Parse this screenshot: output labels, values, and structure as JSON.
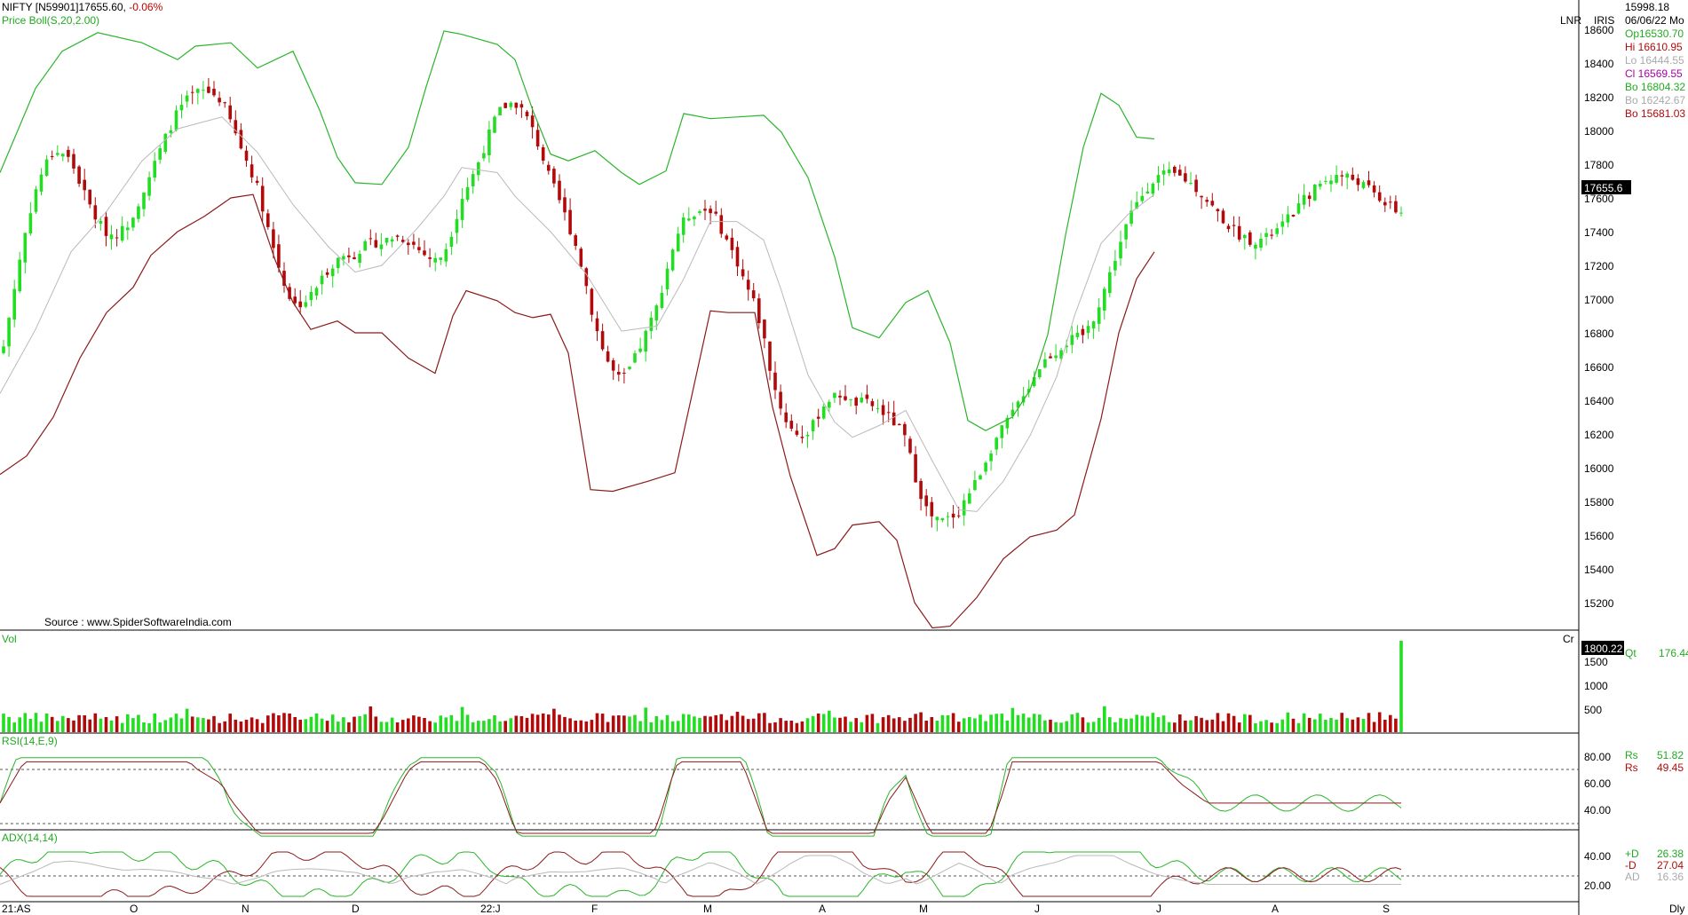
{
  "header": {
    "symbol": "NIFTY [N59901]",
    "last": "17655.60,",
    "change": "-0.06%",
    "indicator": "Price Boll(S,20,2.00)",
    "scale_labels": [
      "LNR",
      "IRIS"
    ]
  },
  "info": {
    "value": "15998.18",
    "date": "06/06/22 Mo",
    "open": "Op16530.70",
    "high": "Hi  16610.95",
    "low": "Lo  16444.55",
    "close": "Cl  16569.55",
    "boll_up": "Bo 16804.32",
    "boll_mid": "Bo 16242.67",
    "boll_low": "Bo 15681.03"
  },
  "source": "Source : www.SpiderSoftwareIndia.com",
  "price_axis": [
    "18600",
    "18400",
    "18200",
    "18000",
    "17800",
    "17600",
    "17400",
    "17200",
    "17000",
    "16800",
    "16600",
    "16400",
    "16200",
    "16000",
    "15800",
    "15600",
    "15400",
    "15200"
  ],
  "price_tag": "17655.6",
  "vol": {
    "label": "Vol",
    "unit": "Cr",
    "tag": "1800.22",
    "qt": "Qt",
    "qt_value": "176.44",
    "axis": [
      "1500",
      "1000",
      "500"
    ]
  },
  "rsi": {
    "label": "RSI(14,E,9)",
    "axis": [
      "80.00",
      "60.00",
      "40.00"
    ],
    "rs1_label": "Rs",
    "rs1_value": "51.82",
    "rs2_label": "Rs",
    "rs2_value": "49.45"
  },
  "adx": {
    "label": "ADX(14,14)",
    "axis": [
      "40.00",
      "20.00"
    ],
    "pd_label": "+D",
    "pd_value": "26.38",
    "md_label": "-D",
    "md_value": "27.04",
    "ad_label": "AD",
    "ad_value": "16.36"
  },
  "x_axis": [
    "21:AS",
    "O",
    "N",
    "D",
    "22:J",
    "F",
    "M",
    "A",
    "M",
    "J",
    "J",
    "A",
    "S"
  ],
  "x_axis_right": "Dly",
  "colors": {
    "up": "#22dd22",
    "down": "#b20a0a",
    "boll_upper": "#2ab52a",
    "boll_mid": "#b9b9b9",
    "boll_lower": "#8b1a1a",
    "rsi": "#2ab52a",
    "rsi_signal": "#8b1a1a",
    "adx_plus": "#2ab52a",
    "adx_minus": "#8b1a1a",
    "adx": "#b9b9b9",
    "tag_bg": "#000000"
  },
  "chart_data": {
    "type": "candlestick",
    "period": "daily",
    "y_range": [
      15050,
      18680
    ],
    "ohlc_count": 260,
    "upper_band": [
      [
        0,
        17750
      ],
      [
        20,
        18000
      ],
      [
        40,
        18250
      ],
      [
        70,
        18470
      ],
      [
        110,
        18580
      ],
      [
        160,
        18520
      ],
      [
        200,
        18420
      ],
      [
        220,
        18500
      ],
      [
        260,
        18520
      ],
      [
        290,
        18370
      ],
      [
        330,
        18470
      ],
      [
        360,
        18120
      ],
      [
        380,
        17840
      ],
      [
        400,
        17690
      ],
      [
        430,
        17680
      ],
      [
        460,
        17900
      ],
      [
        480,
        18260
      ],
      [
        500,
        18590
      ],
      [
        520,
        18570
      ],
      [
        560,
        18510
      ],
      [
        580,
        18420
      ],
      [
        600,
        18120
      ],
      [
        620,
        17860
      ],
      [
        640,
        17820
      ],
      [
        670,
        17880
      ],
      [
        700,
        17750
      ],
      [
        720,
        17680
      ],
      [
        750,
        17760
      ],
      [
        770,
        18100
      ],
      [
        800,
        18070
      ],
      [
        830,
        18080
      ],
      [
        860,
        18090
      ],
      [
        880,
        17990
      ],
      [
        910,
        17720
      ],
      [
        940,
        17250
      ],
      [
        960,
        16830
      ],
      [
        990,
        16770
      ],
      [
        1020,
        16980
      ],
      [
        1045,
        17050
      ],
      [
        1070,
        16740
      ],
      [
        1090,
        16280
      ],
      [
        1110,
        16220
      ],
      [
        1140,
        16300
      ],
      [
        1160,
        16460
      ],
      [
        1180,
        16790
      ],
      [
        1200,
        17380
      ],
      [
        1220,
        17900
      ],
      [
        1240,
        18220
      ],
      [
        1260,
        18150
      ],
      [
        1280,
        17960
      ],
      [
        1300,
        17950
      ]
    ],
    "middle_band": [
      [
        0,
        16440
      ],
      [
        40,
        16820
      ],
      [
        80,
        17280
      ],
      [
        120,
        17520
      ],
      [
        160,
        17820
      ],
      [
        200,
        18010
      ],
      [
        250,
        18080
      ],
      [
        290,
        17870
      ],
      [
        330,
        17560
      ],
      [
        370,
        17310
      ],
      [
        400,
        17160
      ],
      [
        430,
        17200
      ],
      [
        470,
        17420
      ],
      [
        500,
        17610
      ],
      [
        520,
        17780
      ],
      [
        560,
        17750
      ],
      [
        580,
        17610
      ],
      [
        620,
        17400
      ],
      [
        660,
        17150
      ],
      [
        700,
        16810
      ],
      [
        740,
        16840
      ],
      [
        770,
        17120
      ],
      [
        800,
        17460
      ],
      [
        830,
        17460
      ],
      [
        860,
        17350
      ],
      [
        880,
        17050
      ],
      [
        910,
        16550
      ],
      [
        940,
        16270
      ],
      [
        960,
        16180
      ],
      [
        990,
        16250
      ],
      [
        1020,
        16340
      ],
      [
        1050,
        16040
      ],
      [
        1080,
        15750
      ],
      [
        1100,
        15740
      ],
      [
        1130,
        15920
      ],
      [
        1160,
        16190
      ],
      [
        1190,
        16540
      ],
      [
        1210,
        16900
      ],
      [
        1240,
        17330
      ],
      [
        1270,
        17500
      ],
      [
        1300,
        17620
      ]
    ],
    "lower_band": [
      [
        0,
        15960
      ],
      [
        30,
        16070
      ],
      [
        60,
        16300
      ],
      [
        90,
        16650
      ],
      [
        120,
        16920
      ],
      [
        150,
        17070
      ],
      [
        170,
        17260
      ],
      [
        200,
        17400
      ],
      [
        230,
        17490
      ],
      [
        260,
        17600
      ],
      [
        285,
        17620
      ],
      [
        310,
        17230
      ],
      [
        330,
        16980
      ],
      [
        350,
        16820
      ],
      [
        380,
        16870
      ],
      [
        400,
        16800
      ],
      [
        430,
        16800
      ],
      [
        460,
        16650
      ],
      [
        490,
        16560
      ],
      [
        510,
        16900
      ],
      [
        525,
        17050
      ],
      [
        560,
        16990
      ],
      [
        580,
        16920
      ],
      [
        600,
        16890
      ],
      [
        620,
        16910
      ],
      [
        640,
        16680
      ],
      [
        665,
        15870
      ],
      [
        690,
        15860
      ],
      [
        730,
        15920
      ],
      [
        760,
        15970
      ],
      [
        780,
        16450
      ],
      [
        800,
        16930
      ],
      [
        820,
        16920
      ],
      [
        850,
        16920
      ],
      [
        870,
        16360
      ],
      [
        890,
        15950
      ],
      [
        920,
        15480
      ],
      [
        940,
        15520
      ],
      [
        960,
        15660
      ],
      [
        990,
        15680
      ],
      [
        1010,
        15570
      ],
      [
        1030,
        15200
      ],
      [
        1050,
        15050
      ],
      [
        1070,
        15060
      ],
      [
        1100,
        15230
      ],
      [
        1130,
        15460
      ],
      [
        1160,
        15590
      ],
      [
        1190,
        15630
      ],
      [
        1210,
        15720
      ],
      [
        1240,
        16290
      ],
      [
        1260,
        16800
      ],
      [
        1280,
        17120
      ],
      [
        1300,
        17280
      ]
    ],
    "volume_last_cr": 1800.22,
    "rsi_last": [
      51.82,
      49.45
    ],
    "adx_last": {
      "plus_di": 26.38,
      "minus_di": 27.04,
      "adx": 16.36
    }
  }
}
